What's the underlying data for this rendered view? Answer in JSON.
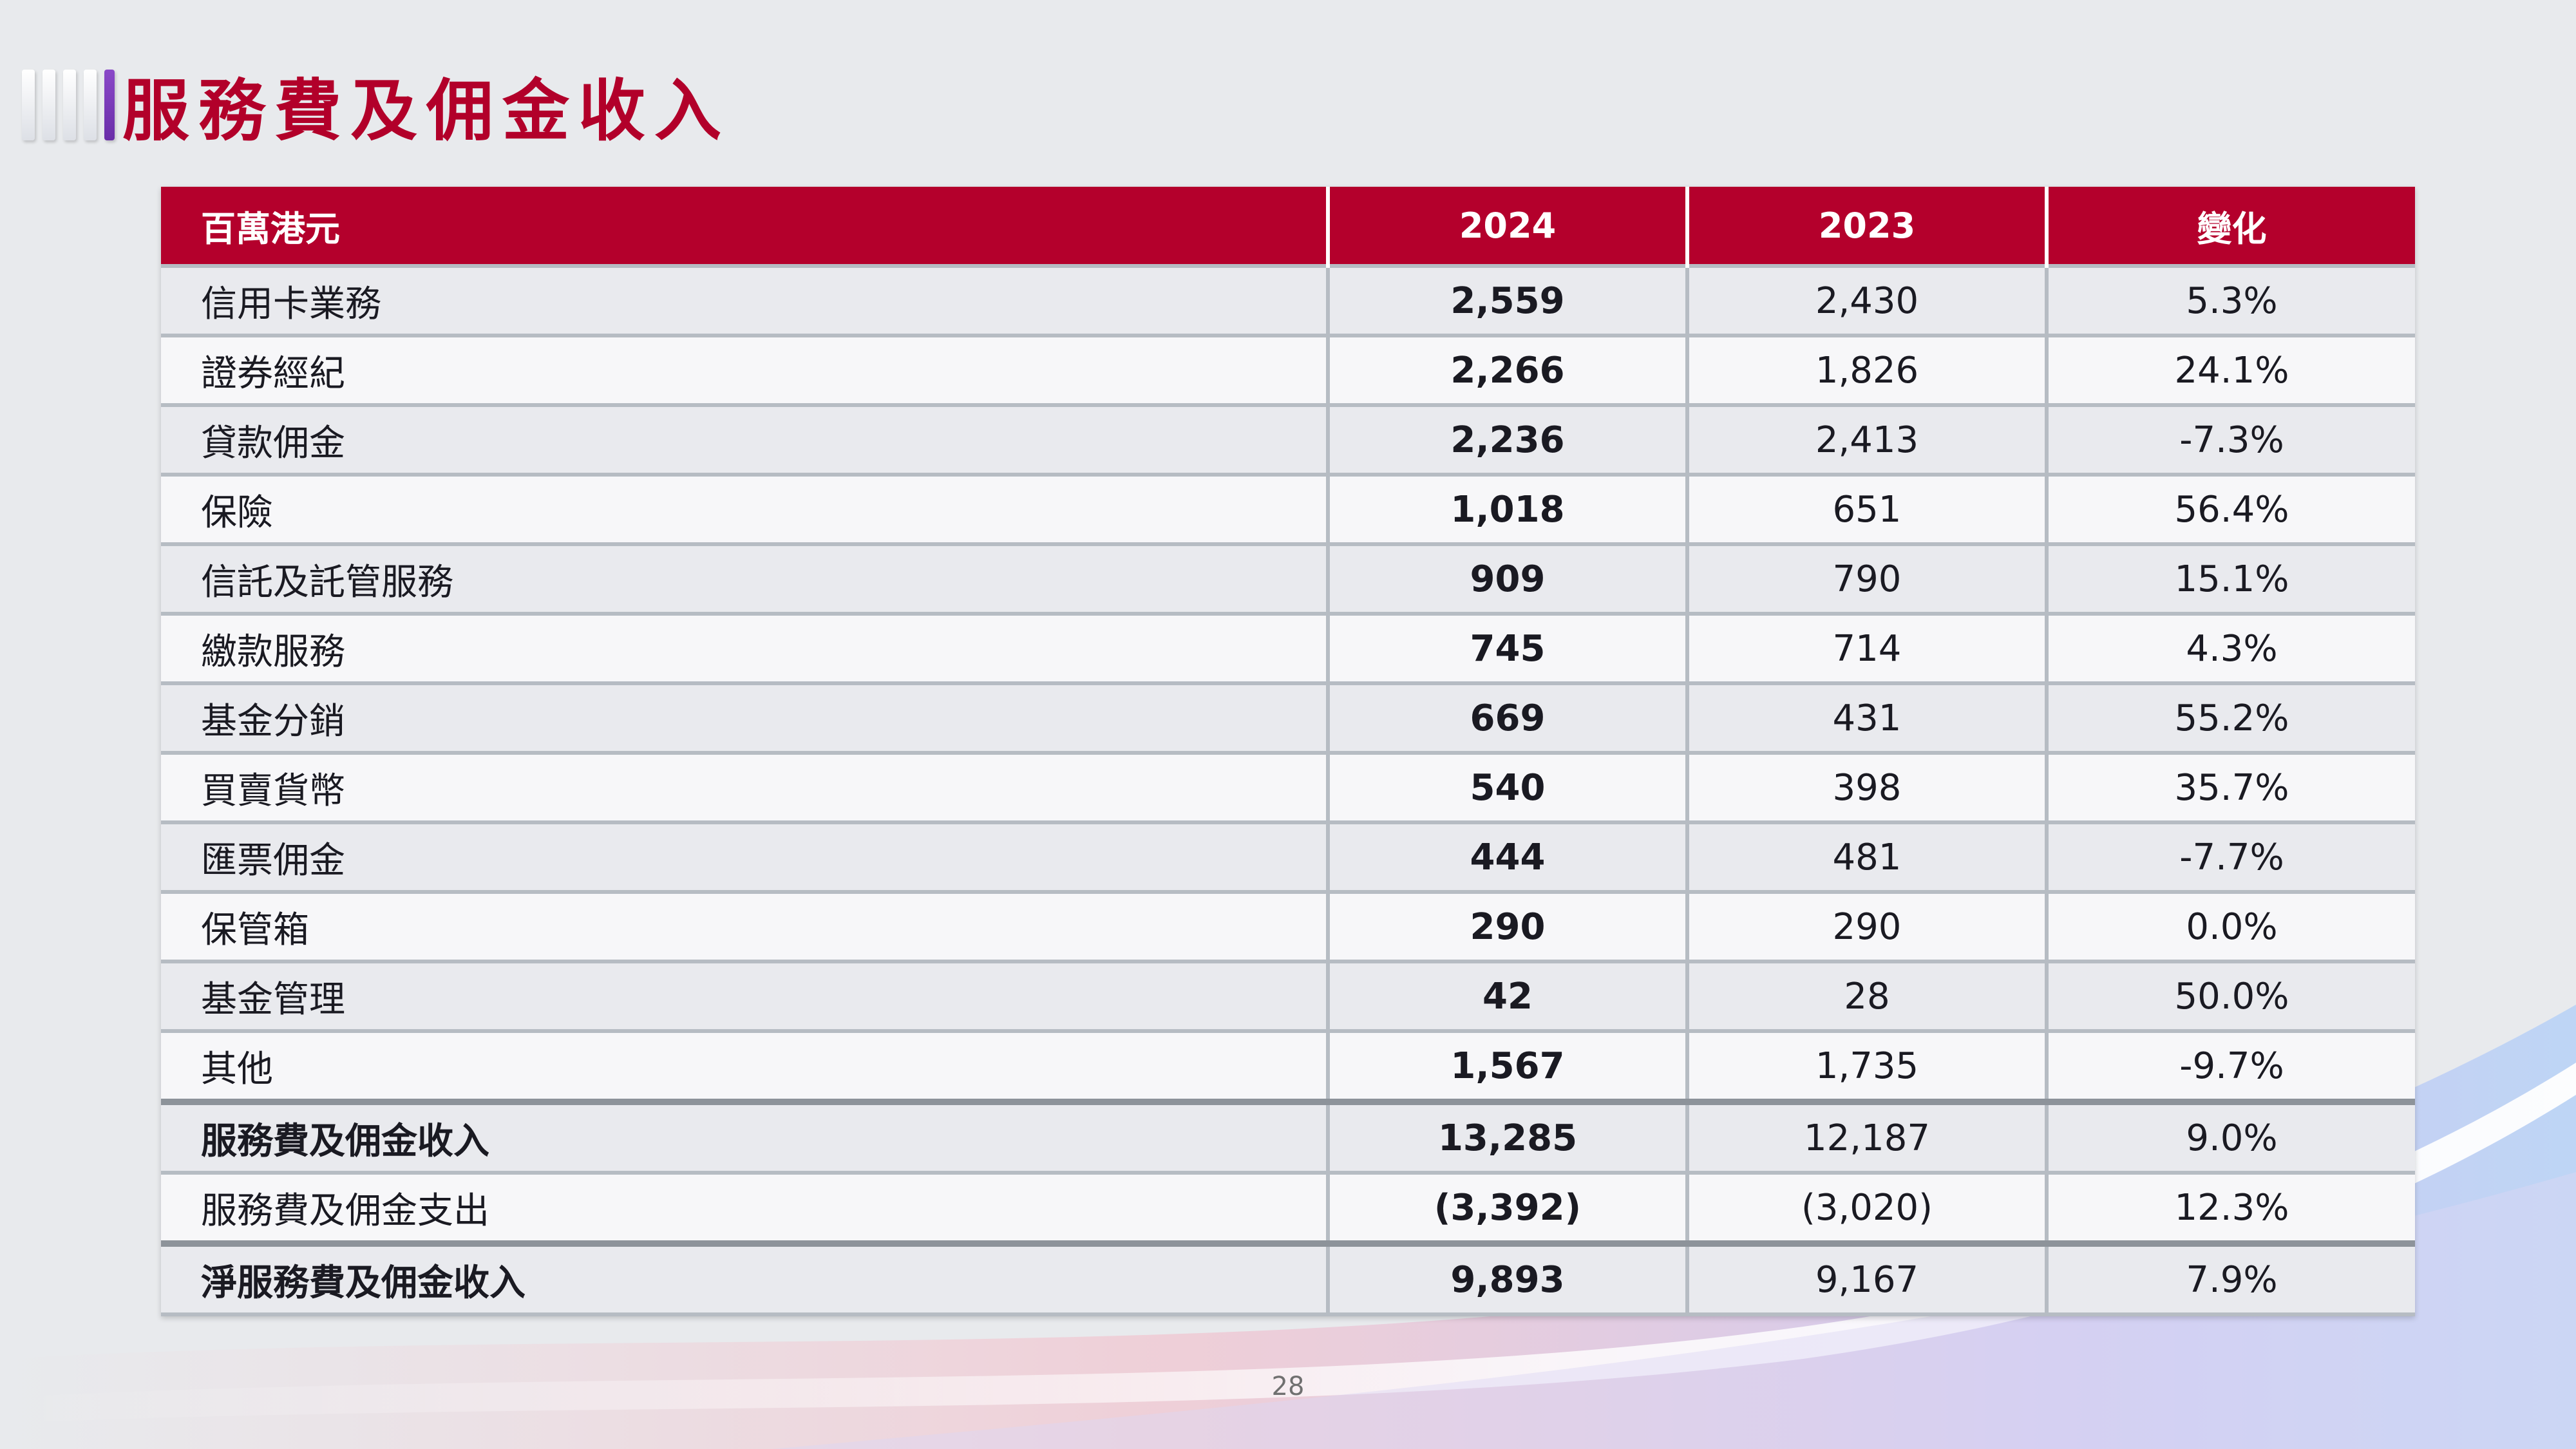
{
  "title": "服務費及佣金收入",
  "table": {
    "headers": [
      "百萬港元",
      "2024",
      "2023",
      "變化"
    ],
    "rows": [
      {
        "label": "信用卡業務",
        "y2024": "2,559",
        "y2023": "2,430",
        "change": "5.3%"
      },
      {
        "label": "證券經紀",
        "y2024": "2,266",
        "y2023": "1,826",
        "change": "24.1%"
      },
      {
        "label": "貸款佣金",
        "y2024": "2,236",
        "y2023": "2,413",
        "change": "-7.3%"
      },
      {
        "label": "保險",
        "y2024": "1,018",
        "y2023": "651",
        "change": "56.4%"
      },
      {
        "label": "信託及託管服務",
        "y2024": "909",
        "y2023": "790",
        "change": "15.1%"
      },
      {
        "label": "繳款服務",
        "y2024": "745",
        "y2023": "714",
        "change": "4.3%"
      },
      {
        "label": "基金分銷",
        "y2024": "669",
        "y2023": "431",
        "change": "55.2%"
      },
      {
        "label": "買賣貨幣",
        "y2024": "540",
        "y2023": "398",
        "change": "35.7%"
      },
      {
        "label": "匯票佣金",
        "y2024": "444",
        "y2023": "481",
        "change": "-7.7%"
      },
      {
        "label": "保管箱",
        "y2024": "290",
        "y2023": "290",
        "change": "0.0%"
      },
      {
        "label": "基金管理",
        "y2024": "42",
        "y2023": "28",
        "change": "50.0%"
      },
      {
        "label": "其他",
        "y2024": "1,567",
        "y2023": "1,735",
        "change": "-9.7%"
      },
      {
        "label": "服務費及佣金收入",
        "y2024": "13,285",
        "y2023": "12,187",
        "change": "9.0%"
      },
      {
        "label": "服務費及佣金支出",
        "y2024": "(3,392)",
        "y2023": "(3,020)",
        "change": "12.3%"
      },
      {
        "label": "淨服務費及佣金收入",
        "y2024": "9,893",
        "y2023": "9,167",
        "change": "7.9%"
      }
    ]
  },
  "page_number": "28",
  "colors": {
    "accent": "#b4002c",
    "title": "#b2002a",
    "title_bar_accent": "#7b3bb8"
  }
}
